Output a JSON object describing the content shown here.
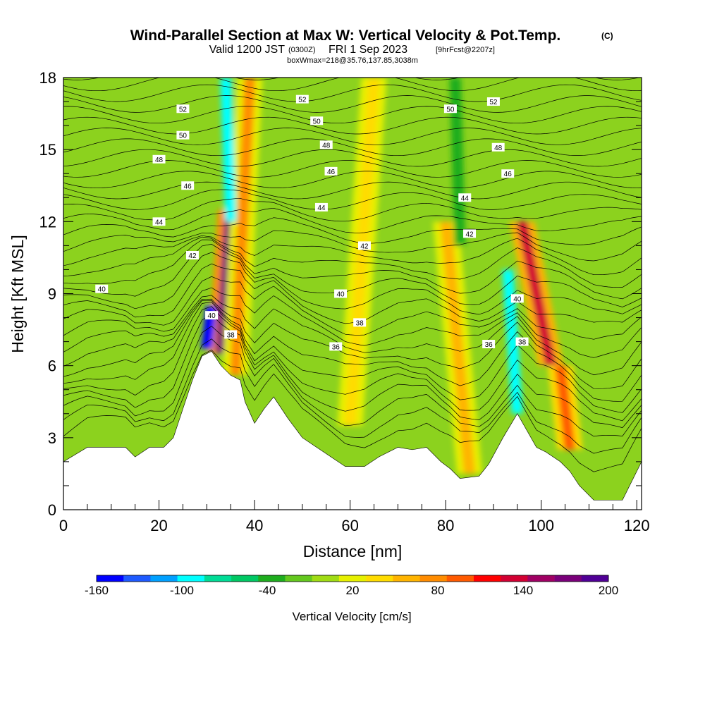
{
  "title": {
    "main": "Wind-Parallel Section at Max W: Vertical Velocity & Pot.Temp.",
    "copyright": "(C)",
    "valid_prefix": "Valid 1200 JST",
    "valid_z": "(0300Z)",
    "valid_date": "FRI 1 Sep 2023",
    "forecast": "[9hrFcst@2207z]",
    "box_info": "boxWmax=218@35.76,137.85,3038m"
  },
  "chart_data": {
    "type": "heatmap",
    "xlabel": "Distance [nm]",
    "ylabel": "Height [Kft MSL]",
    "xlim": [
      0,
      121
    ],
    "ylim": [
      0,
      18
    ],
    "x_ticks": [
      "0",
      "20",
      "40",
      "60",
      "80",
      "100",
      "120"
    ],
    "y_ticks": [
      "0",
      "3",
      "6",
      "9",
      "12",
      "15",
      "18"
    ],
    "colorbar": {
      "label": "Vertical Velocity [cm/s]",
      "tick_labels": [
        "-160",
        "-100",
        "-40",
        "20",
        "80",
        "140",
        "200"
      ],
      "levels": [
        -160,
        -140,
        -120,
        -100,
        -80,
        -60,
        -40,
        -20,
        0,
        20,
        40,
        60,
        80,
        100,
        120,
        140,
        160,
        180,
        200
      ],
      "colors": [
        "#0000ff",
        "#1e5aff",
        "#00a0ff",
        "#00ffff",
        "#00dc96",
        "#00c864",
        "#1ead1e",
        "#64c81e",
        "#a0dc14",
        "#e6f000",
        "#ffdc00",
        "#ffb400",
        "#ff8c00",
        "#ff5a00",
        "#ff0000",
        "#d20032",
        "#a00064",
        "#7a007a",
        "#500096"
      ]
    },
    "terrain_kft": [
      {
        "x": 0,
        "z": 2.0
      },
      {
        "x": 5,
        "z": 2.6
      },
      {
        "x": 13,
        "z": 2.6
      },
      {
        "x": 15,
        "z": 2.2
      },
      {
        "x": 18,
        "z": 2.6
      },
      {
        "x": 21,
        "z": 2.6
      },
      {
        "x": 23,
        "z": 3.0
      },
      {
        "x": 25,
        "z": 4.2
      },
      {
        "x": 27,
        "z": 5.4
      },
      {
        "x": 29,
        "z": 6.4
      },
      {
        "x": 31,
        "z": 6.6
      },
      {
        "x": 33,
        "z": 6.0
      },
      {
        "x": 35,
        "z": 5.6
      },
      {
        "x": 37,
        "z": 5.4
      },
      {
        "x": 38,
        "z": 4.5
      },
      {
        "x": 40,
        "z": 3.6
      },
      {
        "x": 42,
        "z": 4.2
      },
      {
        "x": 44,
        "z": 4.7
      },
      {
        "x": 47,
        "z": 3.8
      },
      {
        "x": 50,
        "z": 3.0
      },
      {
        "x": 53,
        "z": 2.6
      },
      {
        "x": 56,
        "z": 2.2
      },
      {
        "x": 59,
        "z": 1.8
      },
      {
        "x": 63,
        "z": 1.8
      },
      {
        "x": 66,
        "z": 2.2
      },
      {
        "x": 70,
        "z": 2.6
      },
      {
        "x": 73,
        "z": 2.5
      },
      {
        "x": 76,
        "z": 2.6
      },
      {
        "x": 79,
        "z": 2.0
      },
      {
        "x": 81,
        "z": 1.7
      },
      {
        "x": 83,
        "z": 1.3
      },
      {
        "x": 87,
        "z": 1.4
      },
      {
        "x": 89,
        "z": 1.9
      },
      {
        "x": 92,
        "z": 3.0
      },
      {
        "x": 95,
        "z": 4.0
      },
      {
        "x": 97,
        "z": 3.3
      },
      {
        "x": 99,
        "z": 2.6
      },
      {
        "x": 101,
        "z": 2.4
      },
      {
        "x": 104,
        "z": 2.0
      },
      {
        "x": 106,
        "z": 1.6
      },
      {
        "x": 108,
        "z": 1.0
      },
      {
        "x": 111,
        "z": 0.4
      },
      {
        "x": 117,
        "z": 0.4
      },
      {
        "x": 119,
        "z": 1.2
      },
      {
        "x": 121,
        "z": 2.0
      }
    ],
    "updraft_bands": [
      {
        "x_bottom": 33,
        "x_top": 35,
        "z_bottom": 6.5,
        "z_top": 12.5,
        "w": 180
      },
      {
        "x_bottom": 36,
        "x_top": 39,
        "z_bottom": 5.6,
        "z_top": 18,
        "w": 80
      },
      {
        "x_bottom": 60,
        "x_top": 65,
        "z_bottom": 3.5,
        "z_top": 18,
        "w": 40
      },
      {
        "x_bottom": 85,
        "x_top": 80,
        "z_bottom": 1.5,
        "z_top": 12,
        "w": 60
      },
      {
        "x_bottom": 102,
        "x_top": 96,
        "z_bottom": 6.0,
        "z_top": 12,
        "w": 140
      },
      {
        "x_bottom": 106,
        "x_top": 104,
        "z_bottom": 2.5,
        "z_top": 6,
        "w": 100
      }
    ],
    "downdraft_bands": [
      {
        "x_bottom": 30,
        "x_top": 31,
        "z_bottom": 6.7,
        "z_top": 8.5,
        "w": -150
      },
      {
        "x_bottom": 35,
        "x_top": 34,
        "z_bottom": 12,
        "z_top": 18,
        "w": -100
      },
      {
        "x_bottom": 95,
        "x_top": 93,
        "z_bottom": 4.0,
        "z_top": 10,
        "w": -100
      },
      {
        "x_bottom": 83,
        "x_top": 82,
        "z_bottom": 11,
        "z_top": 18,
        "w": -40
      }
    ],
    "isentrope_labels": [
      {
        "text": "52",
        "x": 25,
        "z": 16.7
      },
      {
        "text": "50",
        "x": 25,
        "z": 15.6
      },
      {
        "text": "48",
        "x": 20,
        "z": 14.6
      },
      {
        "text": "46",
        "x": 26,
        "z": 13.5
      },
      {
        "text": "44",
        "x": 20,
        "z": 12.0
      },
      {
        "text": "42",
        "x": 27,
        "z": 10.6
      },
      {
        "text": "40",
        "x": 8,
        "z": 9.2
      },
      {
        "text": "40",
        "x": 31,
        "z": 8.1
      },
      {
        "text": "38",
        "x": 35,
        "z": 7.3
      },
      {
        "text": "52",
        "x": 50,
        "z": 17.1
      },
      {
        "text": "50",
        "x": 53,
        "z": 16.2
      },
      {
        "text": "48",
        "x": 55,
        "z": 15.2
      },
      {
        "text": "46",
        "x": 56,
        "z": 14.1
      },
      {
        "text": "44",
        "x": 54,
        "z": 12.6
      },
      {
        "text": "42",
        "x": 63,
        "z": 11.0
      },
      {
        "text": "40",
        "x": 58,
        "z": 9.0
      },
      {
        "text": "38",
        "x": 62,
        "z": 7.8
      },
      {
        "text": "36",
        "x": 57,
        "z": 6.8
      },
      {
        "text": "50",
        "x": 81,
        "z": 16.7
      },
      {
        "text": "52",
        "x": 90,
        "z": 17.0
      },
      {
        "text": "48",
        "x": 91,
        "z": 15.1
      },
      {
        "text": "46",
        "x": 93,
        "z": 14.0
      },
      {
        "text": "44",
        "x": 84,
        "z": 13.0
      },
      {
        "text": "42",
        "x": 85,
        "z": 11.5
      },
      {
        "text": "40",
        "x": 95,
        "z": 8.8
      },
      {
        "text": "36",
        "x": 89,
        "z": 6.9
      },
      {
        "text": "38",
        "x": 96,
        "z": 7.0
      }
    ]
  }
}
